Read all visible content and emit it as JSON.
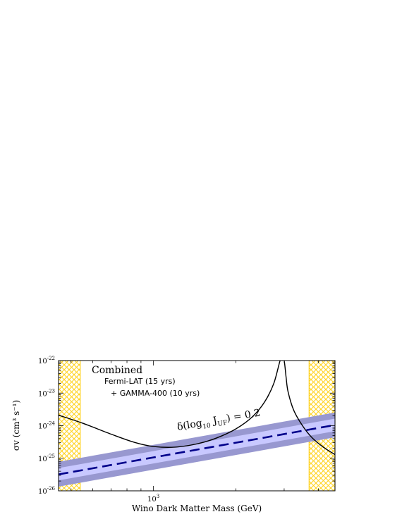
{
  "chart_data": {
    "type": "line",
    "title": "",
    "xlabel": "Wino Dark Matter Mass (GeV)",
    "ylabel": "σv (cm³ s⁻¹)",
    "x_scale": "log",
    "y_scale": "log",
    "xlim": [
      450,
      4600
    ],
    "ylim": [
      1e-26,
      1e-22
    ],
    "x_tick_labels": [
      {
        "value": 1000,
        "base": "10",
        "exp": "3"
      }
    ],
    "y_tick_labels": [
      {
        "value": 1e-26,
        "base": "10",
        "exp": "-26"
      },
      {
        "value": 1e-25,
        "base": "10",
        "exp": "-25"
      },
      {
        "value": 1e-24,
        "base": "10",
        "exp": "-24"
      },
      {
        "value": 1e-23,
        "base": "10",
        "exp": "-23"
      },
      {
        "value": 1e-22,
        "base": "10",
        "exp": "-22"
      }
    ],
    "annotations": {
      "combined": "Combined",
      "fermi": "Fermi-LAT (15 yrs)",
      "gamma": "+ GAMMA-400 (10 yrs)",
      "delta_pre": "δ(log",
      "delta_sub1": "10",
      "delta_mid": " J",
      "delta_sub2": "UF",
      "delta_post": ") = 0.2"
    },
    "excluded_regions": [
      {
        "x": [
          450,
          540
        ],
        "color": "#ffd21e",
        "pattern": "crosshatch"
      },
      {
        "x": [
          3700,
          4600
        ],
        "color": "#ffd21e",
        "pattern": "crosshatch"
      }
    ],
    "series": [
      {
        "style": "dashed",
        "color": "#00008b",
        "x": [
          450,
          4600
        ],
        "y": [
          3.2e-26,
          1.05e-24
        ]
      },
      {
        "style": "band",
        "color": "#c8c8ff",
        "x": [
          450,
          4600
        ],
        "y_low": [
          2.1e-26,
          6.8e-25
        ],
        "y_high": [
          5e-26,
          1.65e-24
        ]
      },
      {
        "style": "band",
        "color": "#9898d0",
        "x": [
          450,
          4600
        ],
        "y_low": [
          1.35e-26,
          4.4e-25
        ],
        "y_high": [
          7.8e-26,
          2.55e-24
        ]
      },
      {
        "style": "solid",
        "color": "#000000",
        "x": [
          450,
          550,
          700,
          850,
          1000,
          1200,
          1450,
          1700,
          2000,
          2300,
          2550,
          2750,
          2900,
          2950,
          3000,
          3050,
          3100,
          3250,
          3500,
          3800,
          4200,
          4600
        ],
        "y": [
          2.1e-24,
          1.2e-24,
          5.5e-25,
          3.1e-25,
          2.3e-25,
          2.2e-25,
          2.8e-25,
          4.2e-25,
          8e-25,
          1.9e-24,
          5.5e-24,
          2e-23,
          1e-22,
          1e-22,
          1e-22,
          3e-23,
          1.1e-23,
          3e-24,
          1e-24,
          4.2e-25,
          2.1e-25,
          1.3e-25
        ]
      }
    ]
  }
}
